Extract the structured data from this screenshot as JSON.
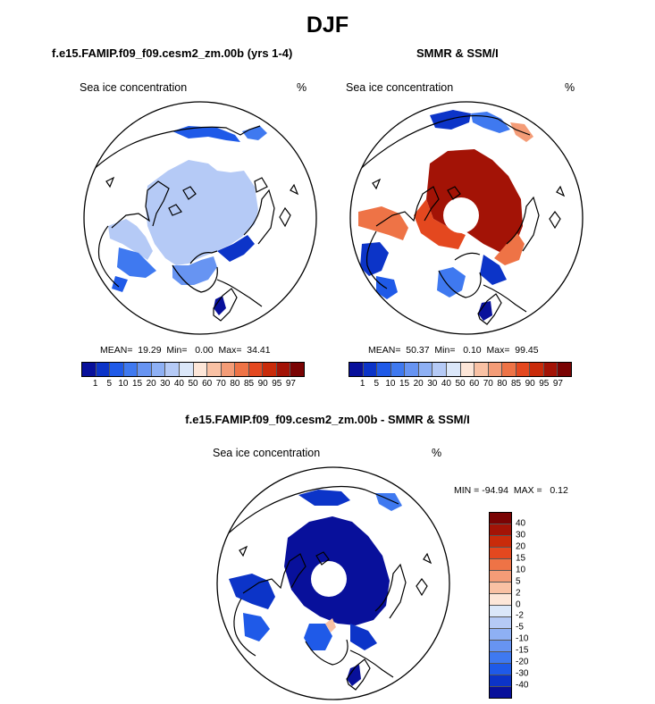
{
  "figure": {
    "title": "DJF",
    "bottom_title": "f.e15.FAMIP.f09_f09.cesm2_zm.00b - SMMR & SSM/I"
  },
  "panels": [
    {
      "title": "f.e15.FAMIP.f09_f09.cesm2_zm.00b (yrs 1-4)",
      "label": "Sea ice concentration",
      "units": "%",
      "stats": "MEAN=  19.29  Min=   0.00  Max=  34.41"
    },
    {
      "title": "SMMR & SSM/I",
      "label": "Sea ice concentration",
      "units": "%",
      "stats": "MEAN=  50.37  Min=   0.10  Max=  99.45"
    },
    {
      "title": "",
      "label": "Sea ice concentration",
      "units": "%",
      "stats": "MIN = -94.94  MAX =   0.12"
    }
  ],
  "colorbars": {
    "concentration": {
      "colors": [
        "#08109b",
        "#0c34c8",
        "#1f5ae8",
        "#3f79f0",
        "#6794f2",
        "#8eb0f4",
        "#b5caf6",
        "#dbe7f9",
        "#fde6d8",
        "#f9c1a4",
        "#f49c77",
        "#ee7346",
        "#e4481f",
        "#c92b0a",
        "#a31306",
        "#7a0303"
      ],
      "ticks": [
        "1",
        "5",
        "10",
        "15",
        "20",
        "30",
        "40",
        "50",
        "60",
        "70",
        "80",
        "85",
        "90",
        "95",
        "97"
      ]
    },
    "difference": {
      "colors": [
        "#7a0303",
        "#a31306",
        "#c92b0a",
        "#e4481f",
        "#ee7346",
        "#f49c77",
        "#f9c1a4",
        "#fde6d8",
        "#dbe7f9",
        "#b5caf6",
        "#8eb0f4",
        "#6794f2",
        "#3f79f0",
        "#1f5ae8",
        "#0c34c8",
        "#08109b"
      ],
      "ticks": [
        "40",
        "30",
        "20",
        "15",
        "10",
        "5",
        "2",
        "0",
        "-2",
        "-5",
        "-10",
        "-15",
        "-20",
        "-30",
        "-40"
      ]
    }
  },
  "chart_data": [
    {
      "type": "heatmap",
      "title": "f.e15.FAMIP.f09_f09.cesm2_zm.00b (yrs 1-4)",
      "projection": "north polar stereographic",
      "variable": "Sea ice concentration",
      "units": "%",
      "levels": [
        1,
        5,
        10,
        15,
        20,
        30,
        40,
        50,
        60,
        70,
        80,
        85,
        90,
        95,
        97
      ],
      "mean": 19.29,
      "min": 0.0,
      "max": 34.41
    },
    {
      "type": "heatmap",
      "title": "SMMR & SSM/I",
      "projection": "north polar stereographic",
      "variable": "Sea ice concentration",
      "units": "%",
      "levels": [
        1,
        5,
        10,
        15,
        20,
        30,
        40,
        50,
        60,
        70,
        80,
        85,
        90,
        95,
        97
      ],
      "mean": 50.37,
      "min": 0.1,
      "max": 99.45
    },
    {
      "type": "heatmap",
      "title": "f.e15.FAMIP.f09_f09.cesm2_zm.00b - SMMR & SSM/I",
      "projection": "north polar stereographic",
      "variable": "Sea ice concentration",
      "units": "%",
      "levels": [
        -40,
        -30,
        -20,
        -15,
        -10,
        -5,
        -2,
        0,
        2,
        5,
        10,
        15,
        20,
        30,
        40
      ],
      "min": -94.94,
      "max": 0.12
    }
  ]
}
